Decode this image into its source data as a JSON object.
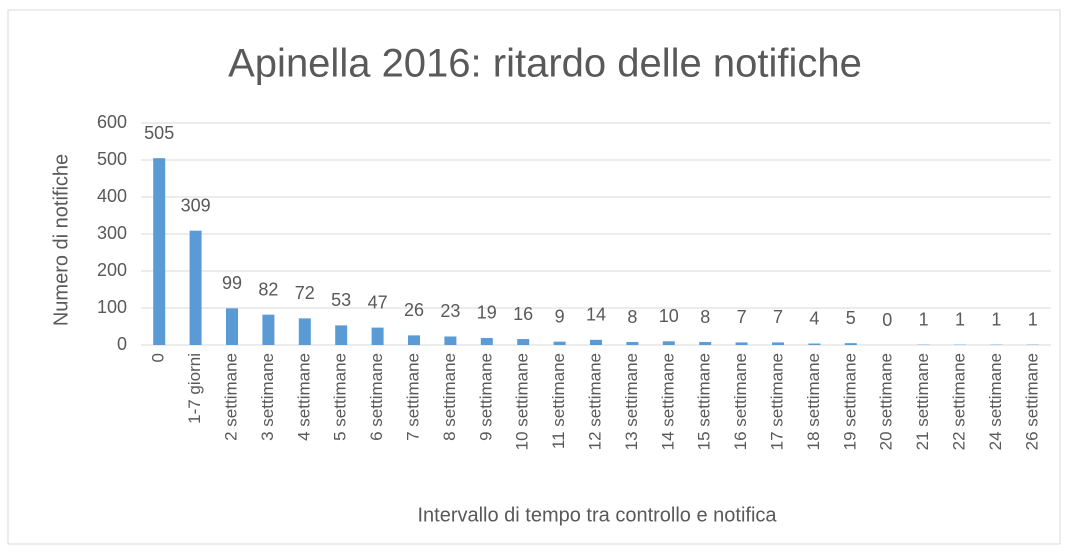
{
  "chart_data": {
    "type": "bar",
    "title": "Apinella 2016: ritardo delle notifiche",
    "y_label": "Numero di notifiche",
    "x_label": "Intervallo di tempo tra controllo e notifica",
    "categories": [
      "0",
      "1-7 giorni",
      "2 settimane",
      "3 settimane",
      "4 settimane",
      "5 settimane",
      "6 settimane",
      "7 settimane",
      "8 settimane",
      "9 settimane",
      "10 settimane",
      "11 settimane",
      "12 settimane",
      "13 settimane",
      "14 settimane",
      "15 settimane",
      "16 settimane",
      "17 settimane",
      "18 settimane",
      "19 settimane",
      "20 settimane",
      "21 settimane",
      "22 settimane",
      "24 settimane",
      "26 settimane"
    ],
    "values": [
      505,
      309,
      99,
      82,
      72,
      53,
      47,
      26,
      23,
      19,
      16,
      9,
      14,
      8,
      10,
      8,
      7,
      7,
      4,
      5,
      0,
      1,
      1,
      1,
      1
    ],
    "color": "#5b9bd5",
    "ylim": [
      0,
      600
    ],
    "yticks": [
      0,
      100,
      200,
      300,
      400,
      500,
      600
    ],
    "grid": true
  }
}
